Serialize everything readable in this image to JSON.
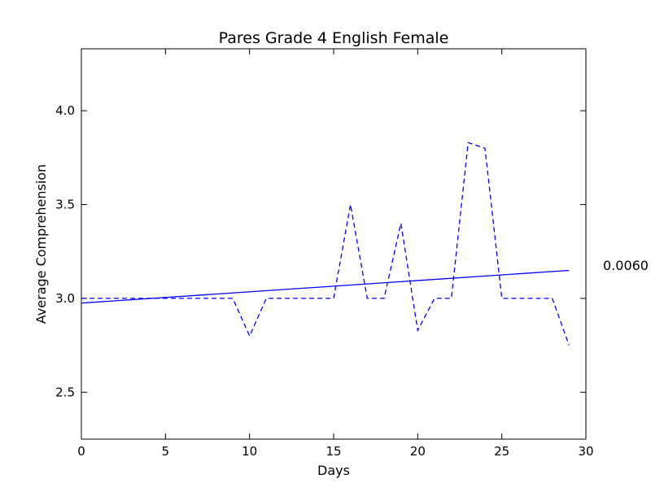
{
  "chart_data": {
    "type": "line",
    "title": "Pares Grade 4 English Female",
    "xlabel": "Days",
    "ylabel": "Average Comprehension",
    "xlim": [
      0,
      30
    ],
    "ylim": [
      2.25,
      4.33
    ],
    "x_ticks": [
      0,
      5,
      10,
      15,
      20,
      25,
      30
    ],
    "x_tick_labels": [
      "0",
      "5",
      "10",
      "15",
      "20",
      "25",
      "30"
    ],
    "y_ticks": [
      2.5,
      3.0,
      3.5,
      4.0
    ],
    "y_tick_labels": [
      "2.5",
      "3.0",
      "3.5",
      "4.0"
    ],
    "grid": false,
    "series": [
      {
        "style": "dashed",
        "color": "#0000ff",
        "x": [
          0,
          1,
          2,
          3,
          4,
          5,
          6,
          7,
          8,
          9,
          10,
          11,
          12,
          13,
          14,
          15,
          16,
          17,
          18,
          19,
          20,
          21,
          22,
          23,
          24,
          25,
          26,
          27,
          28,
          29
        ],
        "values": [
          3.0,
          3.0,
          3.0,
          3.0,
          3.0,
          3.0,
          3.0,
          3.0,
          3.0,
          3.0,
          2.8,
          3.0,
          3.0,
          3.0,
          3.0,
          3.0,
          3.5,
          3.0,
          3.0,
          3.4,
          2.83,
          3.0,
          3.0,
          3.83,
          3.8,
          3.0,
          3.0,
          3.0,
          3.0,
          2.75
        ]
      },
      {
        "style": "solid",
        "color": "#0000ff",
        "x": [
          0,
          29
        ],
        "values": [
          2.975,
          3.149
        ]
      }
    ],
    "annotation": "0.0060"
  }
}
